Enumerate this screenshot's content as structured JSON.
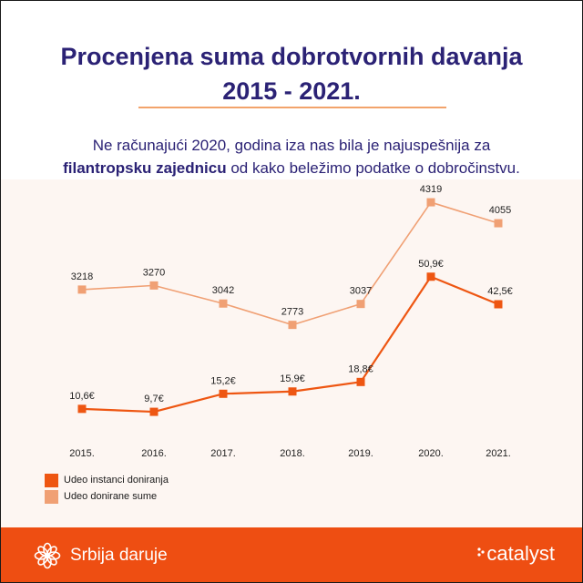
{
  "header": {
    "title_line1": "Procenjena suma dobrotvornih davanja",
    "title_line2": "2015 - 2021.",
    "subtitle_line1": "Ne računajući 2020, godina iza nas bila je najuspešnija za",
    "subtitle_bold": "filantropsku zajednicu",
    "subtitle_rest": " od kako beležimo podatke o dobročinstvu."
  },
  "chart_data": {
    "type": "line",
    "categories": [
      "2015.",
      "2016.",
      "2017.",
      "2018.",
      "2019.",
      "2020.",
      "2021."
    ],
    "series": [
      {
        "name": "Udeo donirane sume",
        "color": "#f0a074",
        "values": [
          3218,
          3270,
          3042,
          2773,
          3037,
          4319,
          4055
        ],
        "labels": [
          "3218",
          "3270",
          "3042",
          "2773",
          "3037",
          "4319",
          "4055"
        ]
      },
      {
        "name": "Udeo instanci doniranja",
        "color": "#ee5612",
        "values": [
          10.6,
          9.7,
          15.2,
          15.9,
          18.8,
          50.9,
          42.5
        ],
        "labels": [
          "10,6€",
          "9,7€",
          "15,2€",
          "15,9€",
          "18,8€",
          "50,9€",
          "42,5€"
        ]
      }
    ],
    "legend": [
      "Udeo instanci doniranja",
      "Udeo donirane sume"
    ],
    "legend_position": "bottom-left",
    "grid": false
  },
  "footer": {
    "left_brand": "Srbija daruje",
    "right_brand": "catalyst",
    "background": "#ee4e12"
  }
}
